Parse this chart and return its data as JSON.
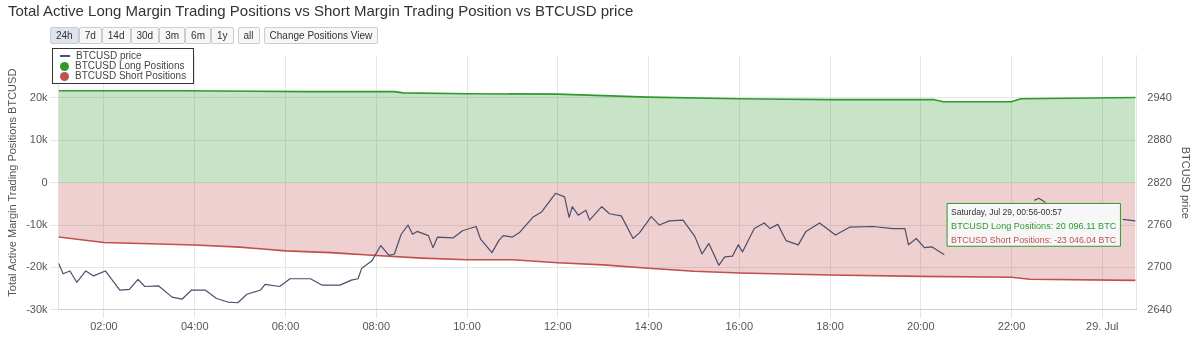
{
  "chart_data": {
    "type": "line",
    "title": "Total Active Long Margin Trading Positions vs Short Margin Trading Position vs BTCUSD price",
    "ylabel": "Total Active Margin Trading Positions BTCUSD",
    "y2label": "BTCUSD price",
    "annotations": [
      "Saturday, Jul 29, 00:56-00:57",
      "BTCUSD Long Positions: 20 096.11 BTC",
      "BTCUSD Short Positions: -23 046.04 BTC",
      "24h",
      "7d",
      "14d",
      "30d",
      "3m",
      "6m",
      "1y",
      "all",
      "Change Positions View"
    ],
    "xlim": [
      1.0,
      24.75
    ],
    "xticks": [
      {
        "value": 2,
        "label": "02:00"
      },
      {
        "value": 4,
        "label": "04:00"
      },
      {
        "value": 6,
        "label": "06:00"
      },
      {
        "value": 8,
        "label": "08:00"
      },
      {
        "value": 10,
        "label": "10:00"
      },
      {
        "value": 12,
        "label": "12:00"
      },
      {
        "value": 14,
        "label": "14:00"
      },
      {
        "value": 16,
        "label": "16:00"
      },
      {
        "value": 18,
        "label": "18:00"
      },
      {
        "value": 20,
        "label": "20:00"
      },
      {
        "value": 22,
        "label": "22:00"
      },
      {
        "value": 24,
        "label": "29. Jul"
      }
    ],
    "ylim": [
      -30000,
      30000
    ],
    "yticks": [
      {
        "value": -30000,
        "label": "-30k"
      },
      {
        "value": -20000,
        "label": "-20k"
      },
      {
        "value": -10000,
        "label": "-10k"
      },
      0,
      {
        "value": 10000,
        "label": "10k"
      },
      {
        "value": 20000,
        "label": "20k"
      }
    ],
    "y2lim": [
      2640,
      3000
    ],
    "y2ticks": [
      2640,
      2700,
      2760,
      2820,
      2880,
      2940
    ],
    "grid": true,
    "legend": "top left",
    "marker": "none",
    "series": [
      {
        "name": "BTCUSD price",
        "type": "line",
        "axis": "y2",
        "color": "#4b4f6b",
        "x": [
          1.0,
          1.1,
          1.25,
          1.4,
          1.6,
          1.77,
          2.03,
          2.35,
          2.56,
          2.75,
          2.9,
          3.2,
          3.5,
          3.72,
          3.93,
          4.23,
          4.48,
          4.73,
          4.95,
          5.15,
          5.45,
          5.55,
          5.87,
          6.1,
          6.55,
          6.8,
          7.2,
          7.45,
          7.6,
          7.68,
          7.9,
          8.1,
          8.28,
          8.4,
          8.55,
          8.7,
          8.8,
          8.9,
          9.15,
          9.25,
          9.35,
          9.7,
          9.9,
          10.2,
          10.3,
          10.55,
          10.7,
          10.8,
          11.0,
          11.15,
          11.45,
          11.65,
          11.95,
          12.15,
          12.25,
          12.32,
          12.45,
          12.62,
          12.7,
          12.97,
          13.14,
          13.4,
          13.66,
          13.8,
          14.06,
          14.24,
          14.46,
          14.76,
          15.02,
          15.18,
          15.33,
          15.55,
          15.68,
          15.85,
          15.98,
          16.07,
          16.33,
          16.55,
          16.68,
          16.85,
          17.03,
          17.3,
          17.47,
          17.77,
          18.12,
          18.43,
          18.95,
          19.39,
          19.65,
          19.73,
          19.9,
          20.08,
          20.25,
          20.52,
          20.74,
          20.83,
          21.0,
          22.5,
          22.6,
          22.75,
          22.9,
          24.45,
          24.73
        ],
        "values": [
          2706,
          2691,
          2695,
          2679,
          2695,
          2688,
          2695,
          2668,
          2669,
          2683,
          2673,
          2674,
          2658,
          2655,
          2668,
          2668,
          2656,
          2651,
          2650,
          2662,
          2668,
          2676,
          2673,
          2684,
          2684,
          2675,
          2675,
          2682,
          2684,
          2699,
          2709,
          2731,
          2717,
          2719,
          2747,
          2760,
          2747,
          2751,
          2745,
          2728,
          2743,
          2742,
          2752,
          2758,
          2740,
          2721,
          2738,
          2745,
          2743,
          2749,
          2771,
          2779,
          2805,
          2800,
          2771,
          2786,
          2774,
          2781,
          2767,
          2786,
          2776,
          2773,
          2741,
          2749,
          2772,
          2760,
          2766,
          2767,
          2744,
          2719,
          2734,
          2703,
          2715,
          2716,
          2732,
          2722,
          2755,
          2763,
          2755,
          2761,
          2738,
          2732,
          2751,
          2763,
          2746,
          2757,
          2758,
          2755,
          2755,
          2732,
          2741,
          2728,
          2729,
          2718,
          null,
          null,
          null,
          2795,
          2798,
          2792,
          null,
          2768,
          2766
        ]
      },
      {
        "name": "BTCUSD Long Positions",
        "type": "area",
        "color": "#2e9a2e",
        "x": [
          1.0,
          3.7,
          6.5,
          8.4,
          8.6,
          10,
          12,
          14,
          16,
          18,
          20.3,
          20.5,
          22.0,
          22.2,
          23.8,
          24.73
        ],
        "values": [
          21700,
          21700,
          21500,
          21500,
          21200,
          21000,
          20900,
          20200,
          19800,
          19600,
          19600,
          19100,
          19100,
          19800,
          20000,
          20096.11
        ]
      },
      {
        "name": "BTCUSD Short Positions",
        "type": "area",
        "color": "#c0504d",
        "x": [
          1.0,
          2,
          4,
          5,
          6,
          7,
          8,
          9,
          10,
          11,
          12,
          13,
          14,
          15,
          16,
          18,
          20,
          22,
          22.4,
          24.73
        ],
        "values": [
          -12800,
          -14100,
          -14700,
          -15200,
          -16100,
          -16500,
          -17200,
          -17800,
          -18200,
          -18200,
          -18900,
          -19400,
          -20200,
          -20900,
          -21300,
          -21800,
          -22100,
          -22300,
          -22800,
          -23046.04
        ]
      }
    ]
  }
}
